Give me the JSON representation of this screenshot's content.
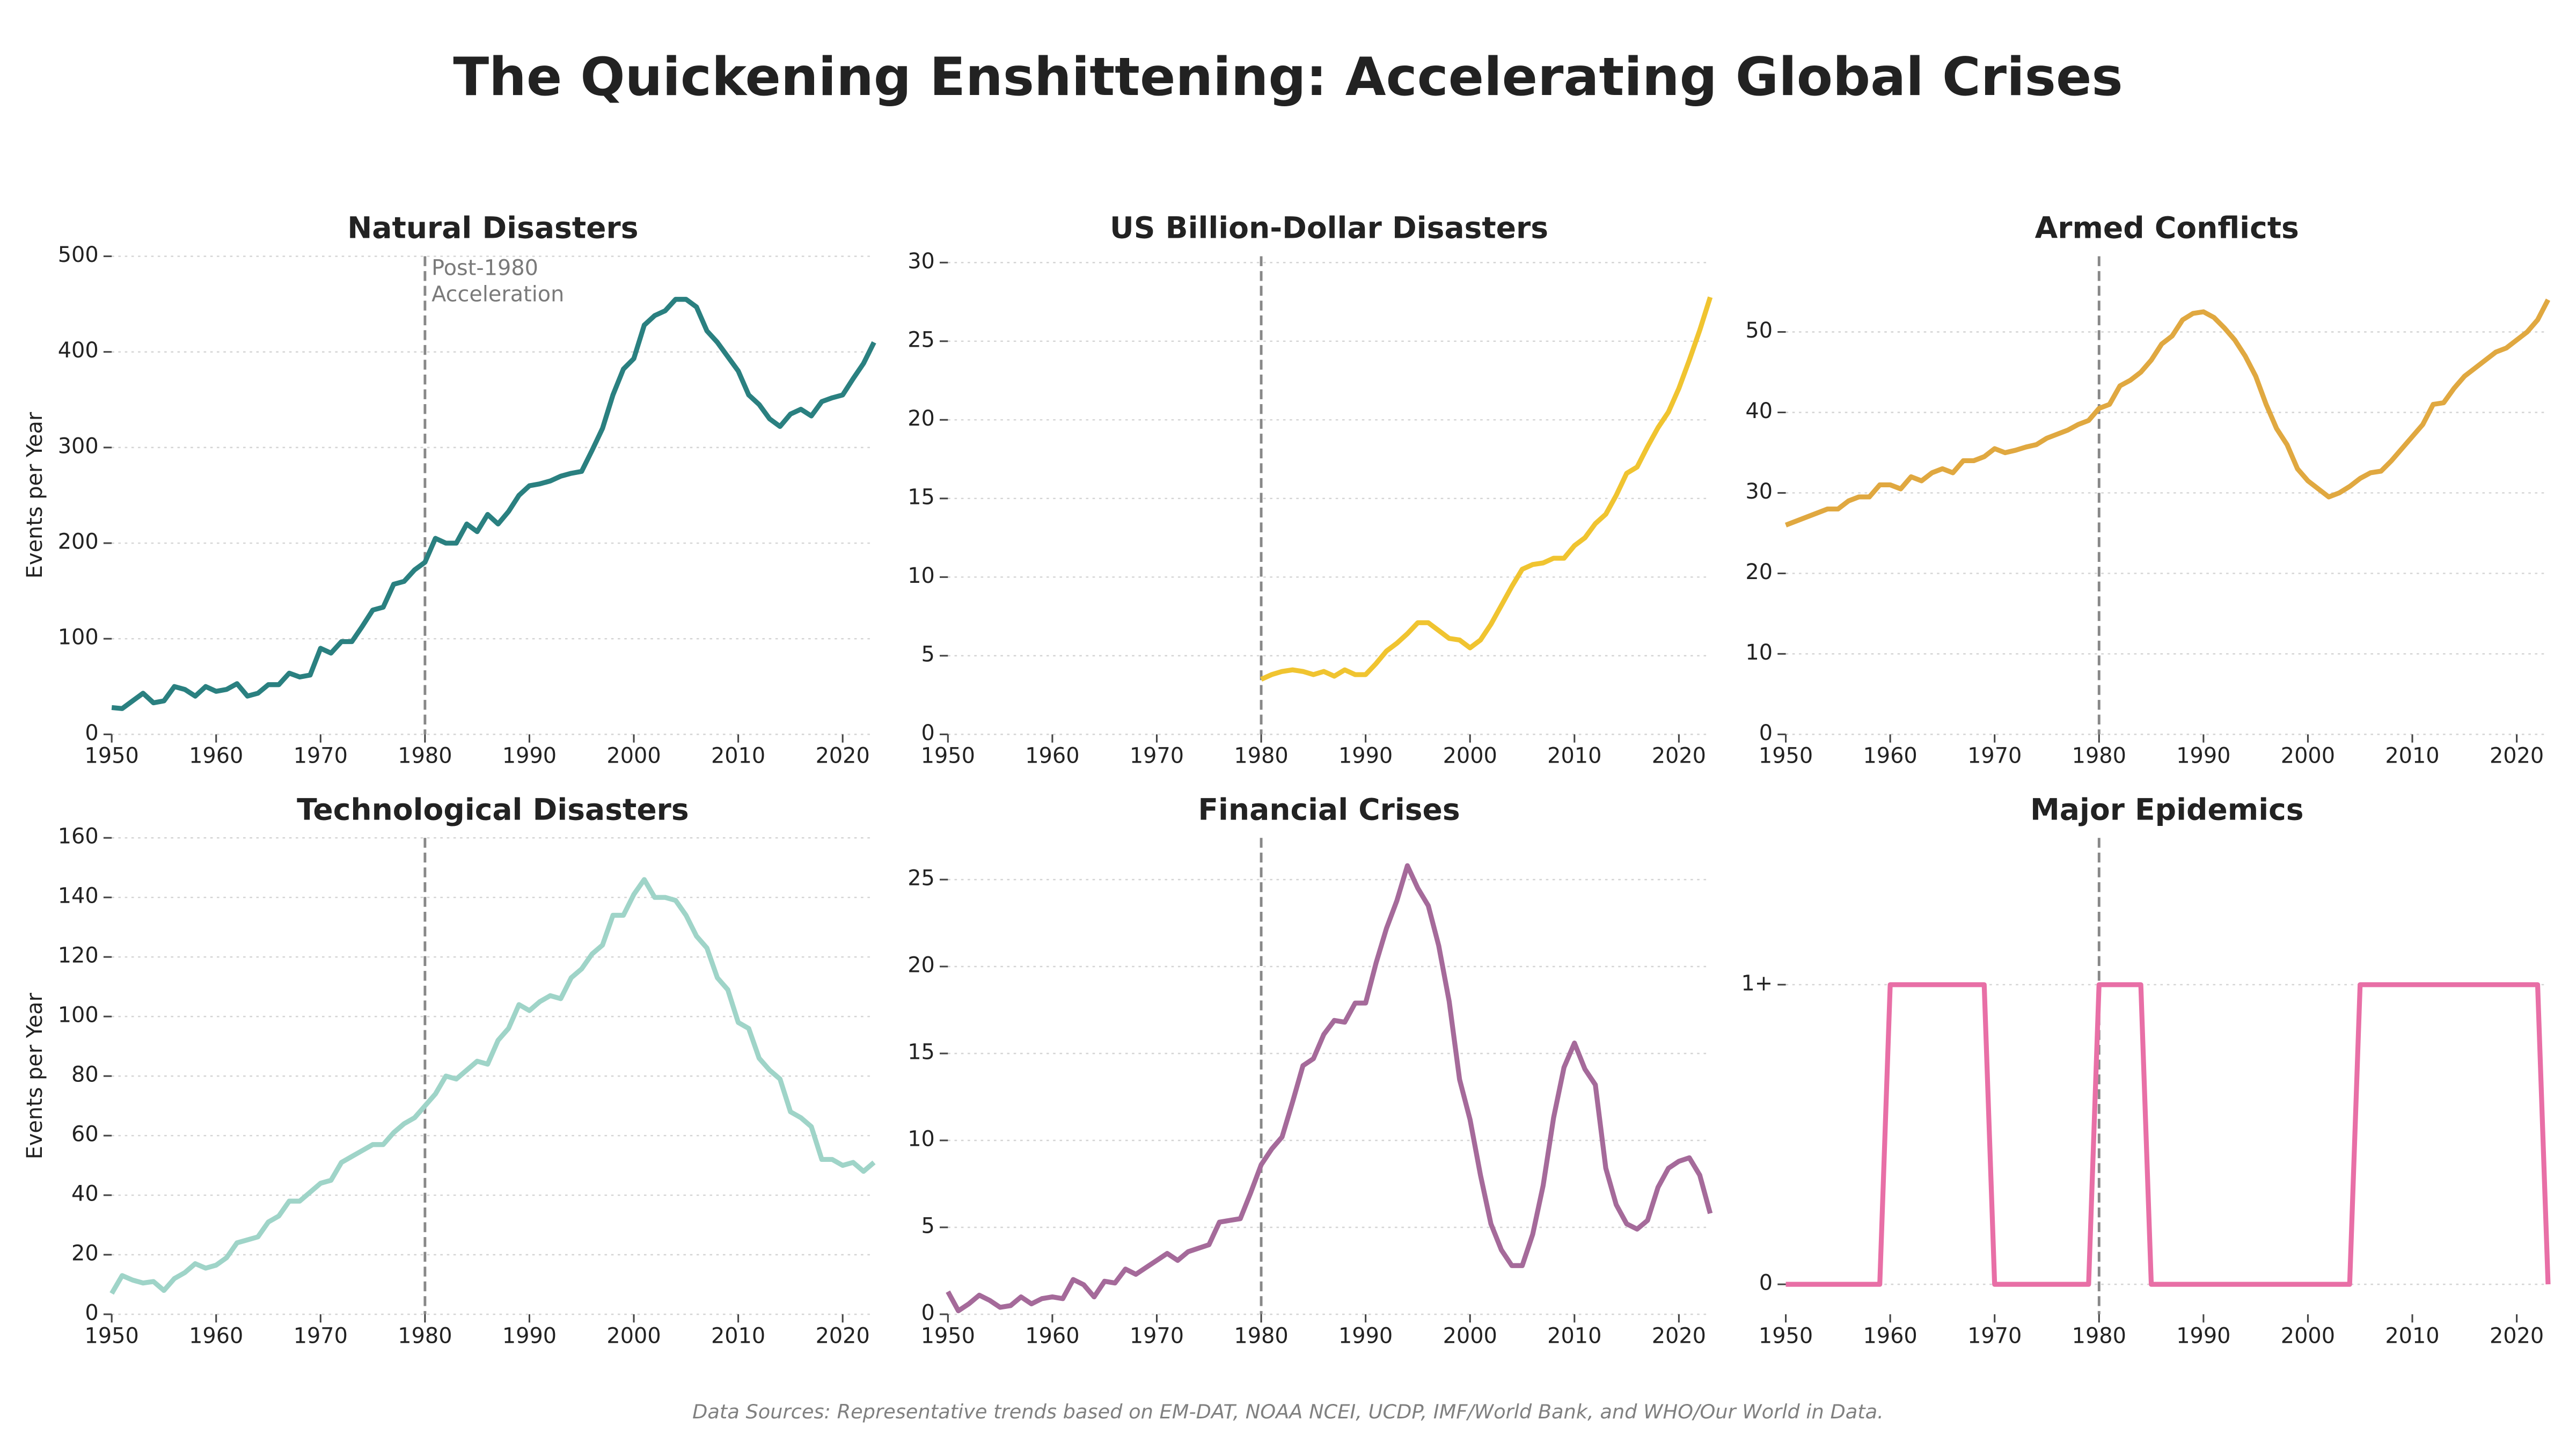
{
  "title": "The Quickening Enshittening: Accelerating Global Crises",
  "footer": "Data Sources: Representative trends based on EM-DAT, NOAA NCEI, UCDP, IMF/World Bank, and WHO/Our World in Data.",
  "chart_data": [
    {
      "type": "line",
      "title": "Natural Disasters",
      "ylabel": "Events per Year",
      "color": "#2a8080",
      "vline": 1980,
      "annotation": [
        "Post-1980",
        "Acceleration"
      ],
      "x": [
        1950,
        1951,
        1952,
        1953,
        1954,
        1955,
        1956,
        1957,
        1958,
        1959,
        1960,
        1961,
        1962,
        1963,
        1964,
        1965,
        1966,
        1967,
        1968,
        1969,
        1970,
        1971,
        1972,
        1973,
        1974,
        1975,
        1976,
        1977,
        1978,
        1979,
        1980,
        1981,
        1982,
        1983,
        1984,
        1985,
        1986,
        1987,
        1988,
        1989,
        1990,
        1991,
        1992,
        1993,
        1994,
        1995,
        1996,
        1997,
        1998,
        1999,
        2000,
        2001,
        2002,
        2003,
        2004,
        2005,
        2006,
        2007,
        2008,
        2009,
        2010,
        2011,
        2012,
        2013,
        2014,
        2015,
        2016,
        2017,
        2018,
        2019,
        2020,
        2021,
        2022,
        2023
      ],
      "values": [
        28,
        27,
        35,
        43,
        33,
        35,
        50,
        47,
        40,
        50,
        45,
        47,
        53,
        40,
        43,
        52,
        52,
        64,
        60,
        62,
        90,
        85,
        97,
        97,
        113,
        130,
        133,
        157,
        160,
        172,
        180,
        205,
        200,
        200,
        220,
        212,
        230,
        220,
        233,
        250,
        260,
        262,
        265,
        270,
        273,
        275,
        297,
        320,
        355,
        382,
        393,
        428,
        438,
        443,
        455,
        455,
        447,
        422,
        410,
        395,
        380,
        355,
        345,
        330,
        322,
        335,
        340,
        333,
        348,
        352,
        355,
        372,
        388,
        410
      ],
      "xlim": [
        1950,
        2023
      ],
      "xticks": [
        1950,
        1960,
        1970,
        1980,
        1990,
        2000,
        2010,
        2020
      ],
      "ylim": [
        0,
        500
      ],
      "yticks": [
        0,
        100,
        200,
        300,
        400,
        500
      ],
      "grid": true
    },
    {
      "type": "line",
      "title": "US Billion-Dollar Disasters",
      "color": "#f0c430",
      "vline": 1980,
      "x": [
        1950,
        1951,
        1952,
        1953,
        1954,
        1955,
        1956,
        1957,
        1958,
        1959,
        1960,
        1961,
        1962,
        1963,
        1964,
        1965,
        1966,
        1967,
        1968,
        1969,
        1970,
        1971,
        1972,
        1973,
        1974,
        1975,
        1976,
        1977,
        1978,
        1979,
        1980,
        1981,
        1982,
        1983,
        1984,
        1985,
        1986,
        1987,
        1988,
        1989,
        1990,
        1991,
        1992,
        1993,
        1994,
        1995,
        1996,
        1997,
        1998,
        1999,
        2000,
        2001,
        2002,
        2003,
        2004,
        2005,
        2006,
        2007,
        2008,
        2009,
        2010,
        2011,
        2012,
        2013,
        2014,
        2015,
        2016,
        2017,
        2018,
        2019,
        2020,
        2021,
        2022,
        2023
      ],
      "values": [
        null,
        null,
        null,
        null,
        null,
        null,
        null,
        null,
        null,
        null,
        null,
        null,
        null,
        null,
        null,
        null,
        null,
        null,
        null,
        null,
        null,
        null,
        null,
        null,
        null,
        null,
        null,
        null,
        null,
        null,
        3.5,
        3.8,
        4,
        4.1,
        4,
        3.8,
        4,
        3.7,
        4.1,
        3.8,
        3.8,
        4.5,
        5.3,
        5.8,
        6.4,
        7.1,
        7.1,
        6.6,
        6.1,
        6,
        5.5,
        6,
        7,
        8.2,
        9.4,
        10.5,
        10.8,
        10.9,
        11.2,
        11.2,
        12,
        12.5,
        13.4,
        14,
        15.2,
        16.6,
        17,
        18.3,
        19.5,
        20.5,
        22,
        23.8,
        25.7,
        27.8
      ],
      "xlim": [
        1950,
        2023
      ],
      "xticks": [
        1950,
        1960,
        1970,
        1980,
        1990,
        2000,
        2010,
        2020
      ],
      "ylim": [
        0,
        30.4
      ],
      "yticks": [
        0,
        5,
        10,
        15,
        20,
        25,
        30
      ],
      "grid": true
    },
    {
      "type": "line",
      "title": "Armed Conflicts",
      "color": "#e0a840",
      "vline": 1980,
      "x": [
        1950,
        1951,
        1952,
        1953,
        1954,
        1955,
        1956,
        1957,
        1958,
        1959,
        1960,
        1961,
        1962,
        1963,
        1964,
        1965,
        1966,
        1967,
        1968,
        1969,
        1970,
        1971,
        1972,
        1973,
        1974,
        1975,
        1976,
        1977,
        1978,
        1979,
        1980,
        1981,
        1982,
        1983,
        1984,
        1985,
        1986,
        1987,
        1988,
        1989,
        1990,
        1991,
        1992,
        1993,
        1994,
        1995,
        1996,
        1997,
        1998,
        1999,
        2000,
        2001,
        2002,
        2003,
        2004,
        2005,
        2006,
        2007,
        2008,
        2009,
        2010,
        2011,
        2012,
        2013,
        2014,
        2015,
        2016,
        2017,
        2018,
        2019,
        2020,
        2021,
        2022,
        2023
      ],
      "values": [
        26,
        26.5,
        27,
        27.5,
        28,
        28,
        29,
        29.5,
        29.5,
        31,
        31,
        30.5,
        32,
        31.5,
        32.5,
        33,
        32.5,
        34,
        34,
        34.5,
        35.5,
        35,
        35.3,
        35.7,
        36,
        36.8,
        37.3,
        37.8,
        38.5,
        39,
        40.5,
        41,
        43.3,
        44,
        45,
        46.5,
        48.5,
        49.5,
        51.5,
        52.3,
        52.5,
        51.8,
        50.5,
        49,
        47,
        44.5,
        41,
        38,
        36,
        33,
        31.5,
        30.5,
        29.5,
        30,
        30.8,
        31.8,
        32.5,
        32.7,
        34,
        35.5,
        37,
        38.5,
        41,
        41.2,
        43,
        44.5,
        45.5,
        46.5,
        47.5,
        48,
        49,
        50,
        51.5,
        54
      ],
      "xlim": [
        1950,
        2023
      ],
      "xticks": [
        1950,
        1960,
        1970,
        1980,
        1990,
        2000,
        2010,
        2020
      ],
      "ylim": [
        0,
        59.4
      ],
      "yticks": [
        0,
        10,
        20,
        30,
        40,
        50
      ],
      "grid": true
    },
    {
      "type": "line",
      "title": "Technological Disasters",
      "ylabel": "Events per Year",
      "color": "#9fd4c8",
      "vline": 1980,
      "x": [
        1950,
        1951,
        1952,
        1953,
        1954,
        1955,
        1956,
        1957,
        1958,
        1959,
        1960,
        1961,
        1962,
        1963,
        1964,
        1965,
        1966,
        1967,
        1968,
        1969,
        1970,
        1971,
        1972,
        1973,
        1974,
        1975,
        1976,
        1977,
        1978,
        1979,
        1980,
        1981,
        1982,
        1983,
        1984,
        1985,
        1986,
        1987,
        1988,
        1989,
        1990,
        1991,
        1992,
        1993,
        1994,
        1995,
        1996,
        1997,
        1998,
        1999,
        2000,
        2001,
        2002,
        2003,
        2004,
        2005,
        2006,
        2007,
        2008,
        2009,
        2010,
        2011,
        2012,
        2013,
        2014,
        2015,
        2016,
        2017,
        2018,
        2019,
        2020,
        2021,
        2022,
        2023
      ],
      "values": [
        7,
        13,
        11.5,
        10.5,
        11,
        8,
        12,
        14,
        17,
        15.5,
        16.5,
        19,
        24,
        25,
        26,
        31,
        33,
        38,
        38,
        41,
        44,
        45,
        51,
        53,
        55,
        57,
        57,
        61,
        64,
        66,
        70,
        74,
        80,
        79,
        82,
        85,
        84,
        92,
        96,
        104,
        102,
        105,
        107,
        106,
        113,
        116,
        121,
        124,
        134,
        134,
        141,
        146,
        140,
        140,
        139,
        134,
        127,
        123,
        113,
        109,
        98,
        96,
        86,
        82,
        79,
        68,
        66,
        63,
        52,
        52,
        50,
        51,
        48,
        51
      ],
      "xlim": [
        1950,
        2023
      ],
      "xticks": [
        1950,
        1960,
        1970,
        1980,
        1990,
        2000,
        2010,
        2020
      ],
      "ylim": [
        0,
        160
      ],
      "yticks": [
        0,
        20,
        40,
        60,
        80,
        100,
        120,
        140,
        160
      ],
      "grid": true
    },
    {
      "type": "line",
      "title": "Financial Crises",
      "color": "#a56a9a",
      "vline": 1980,
      "x": [
        1950,
        1951,
        1952,
        1953,
        1954,
        1955,
        1956,
        1957,
        1958,
        1959,
        1960,
        1961,
        1962,
        1963,
        1964,
        1965,
        1966,
        1967,
        1968,
        1969,
        1970,
        1971,
        1972,
        1973,
        1974,
        1975,
        1976,
        1977,
        1978,
        1979,
        1980,
        1981,
        1982,
        1983,
        1984,
        1985,
        1986,
        1987,
        1988,
        1989,
        1990,
        1991,
        1992,
        1993,
        1994,
        1995,
        1996,
        1997,
        1998,
        1999,
        2000,
        2001,
        2002,
        2003,
        2004,
        2005,
        2006,
        2007,
        2008,
        2009,
        2010,
        2011,
        2012,
        2013,
        2014,
        2015,
        2016,
        2017,
        2018,
        2019,
        2020,
        2021,
        2022,
        2023
      ],
      "values": [
        1.3,
        0.2,
        0.6,
        1.1,
        0.8,
        0.4,
        0.5,
        1,
        0.6,
        0.9,
        1,
        0.9,
        2,
        1.7,
        1,
        1.9,
        1.8,
        2.6,
        2.3,
        2.7,
        3.1,
        3.5,
        3.1,
        3.6,
        3.8,
        4,
        5.3,
        5.4,
        5.5,
        7,
        8.6,
        9.5,
        10.2,
        12.2,
        14.3,
        14.7,
        16.1,
        16.9,
        16.8,
        17.9,
        17.9,
        20.2,
        22.2,
        23.8,
        25.8,
        24.5,
        23.5,
        21.2,
        18,
        13.5,
        11.2,
        8,
        5.2,
        3.7,
        2.8,
        2.8,
        4.6,
        7.4,
        11.3,
        14.2,
        15.6,
        14.1,
        13.2,
        8.4,
        6.3,
        5.2,
        4.9,
        5.4,
        7.3,
        8.4,
        8.8,
        9,
        8,
        5.8
      ],
      "xlim": [
        1950,
        2023
      ],
      "xticks": [
        1950,
        1960,
        1970,
        1980,
        1990,
        2000,
        2010,
        2020
      ],
      "ylim": [
        0,
        27.4
      ],
      "yticks": [
        0,
        5,
        10,
        15,
        20,
        25
      ],
      "grid": true
    },
    {
      "type": "line",
      "title": "Major Epidemics",
      "color": "#e86fa6",
      "vline": 1980,
      "x": [
        1950,
        1951,
        1952,
        1953,
        1954,
        1955,
        1956,
        1957,
        1958,
        1959,
        1960,
        1961,
        1962,
        1963,
        1964,
        1965,
        1966,
        1967,
        1968,
        1969,
        1970,
        1971,
        1972,
        1973,
        1974,
        1975,
        1976,
        1977,
        1978,
        1979,
        1980,
        1981,
        1982,
        1983,
        1984,
        1985,
        1986,
        1987,
        1988,
        1989,
        1990,
        1991,
        1992,
        1993,
        1994,
        1995,
        1996,
        1997,
        1998,
        1999,
        2000,
        2001,
        2002,
        2003,
        2004,
        2005,
        2006,
        2007,
        2008,
        2009,
        2010,
        2011,
        2012,
        2013,
        2014,
        2015,
        2016,
        2017,
        2018,
        2019,
        2020,
        2021,
        2022,
        2023
      ],
      "values": [
        0,
        0,
        0,
        0,
        0,
        0,
        0,
        0,
        0,
        0,
        1,
        1,
        1,
        1,
        1,
        1,
        1,
        1,
        1,
        1,
        0,
        0,
        0,
        0,
        0,
        0,
        0,
        0,
        0,
        0,
        1,
        1,
        1,
        1,
        1,
        0,
        0,
        0,
        0,
        0,
        0,
        0,
        0,
        0,
        0,
        0,
        0,
        0,
        0,
        0,
        0,
        0,
        0,
        0,
        0,
        1,
        1,
        1,
        1,
        1,
        1,
        1,
        1,
        1,
        1,
        1,
        1,
        1,
        1,
        1,
        1,
        1,
        1,
        0
      ],
      "xlim": [
        1950,
        2023
      ],
      "xticks": [
        1950,
        1960,
        1970,
        1980,
        1990,
        2000,
        2010,
        2020
      ],
      "ylim": [
        -0.1,
        1.49
      ],
      "yticks": [
        0,
        {
          "value": 1,
          "label": "1+"
        }
      ],
      "grid": true
    }
  ]
}
